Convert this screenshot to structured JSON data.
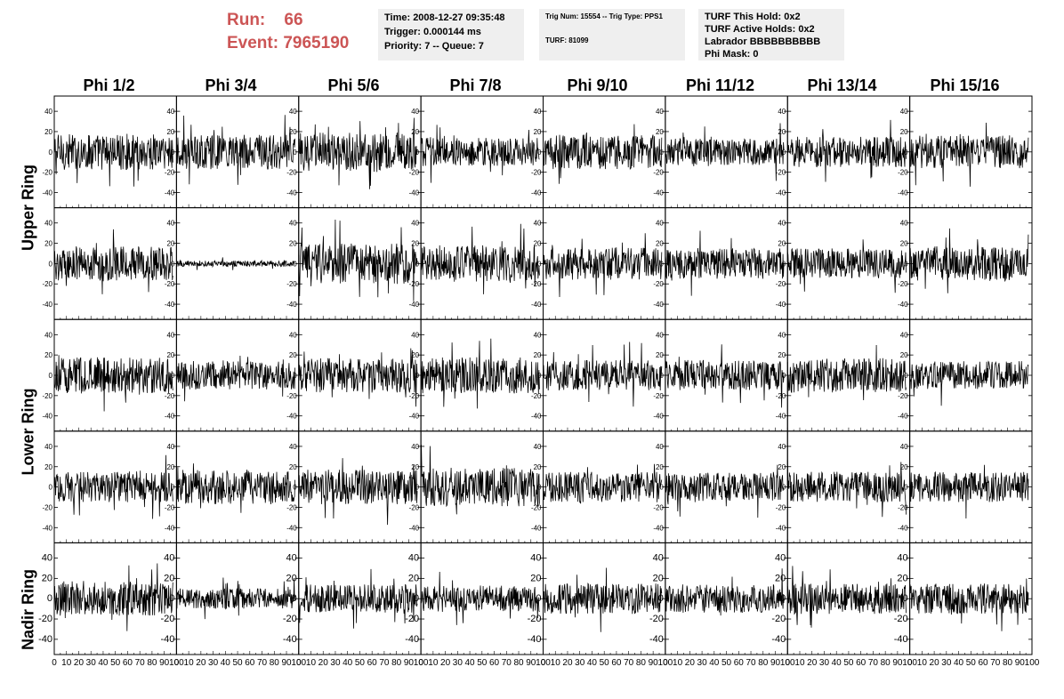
{
  "header": {
    "run_label": "Run:",
    "run_value": "66",
    "event_label": "Event:",
    "event_value": "7965190"
  },
  "info_box_1": {
    "time": "Time: 2008-12-27 09:35:48",
    "trigger": "Trigger: 0.000144 ms",
    "priority": "Priority: 7 -- Queue: 7"
  },
  "info_box_2": {
    "trig": "Trig Num: 15554 -- Trig Type: PPS1",
    "turf": "TURF: 81099"
  },
  "info_box_3": {
    "hold": "TURF This Hold: 0x2",
    "active": "TURF Active Holds: 0x2",
    "labrador": "Labrador BBBBBBBBBB",
    "phimask": "Phi Mask: 0"
  },
  "columns": [
    "Phi 1/2",
    "Phi 3/4",
    "Phi 5/6",
    "Phi 7/8",
    "Phi 9/10",
    "Phi 11/12",
    "Phi 13/14",
    "Phi 15/16"
  ],
  "rings": [
    "Upper Ring",
    "Lower Ring",
    "Nadir Ring"
  ],
  "colors": {
    "header_red": "#cc5555",
    "trace": "#000000",
    "info_bg": "#efefef"
  },
  "chart_data": {
    "type": "line",
    "description": "Grid of 5 rows x 8 columns of waveform traces (channel voltage vs sample)",
    "x_ticks": [
      0,
      10,
      20,
      30,
      40,
      50,
      60,
      70,
      80,
      90,
      100
    ],
    "x_tick_labels": [
      "0",
      "10",
      "20",
      "30",
      "40",
      "50",
      "60",
      "70",
      "80",
      "90",
      "100"
    ],
    "y_ticks": [
      -40,
      -20,
      0,
      20,
      40
    ],
    "y_tick_labels": [
      "-40",
      "-20",
      "0",
      "20",
      "40"
    ],
    "xlim": [
      0,
      100
    ],
    "ylim": [
      -55,
      55
    ],
    "panel_rows": 5,
    "panel_cols": 8,
    "n_samples": 260,
    "panels": [
      {
        "row": 0,
        "col": 0,
        "amp": 18
      },
      {
        "row": 0,
        "col": 1,
        "amp": 17
      },
      {
        "row": 0,
        "col": 2,
        "amp": 19
      },
      {
        "row": 0,
        "col": 3,
        "amp": 14
      },
      {
        "row": 0,
        "col": 4,
        "amp": 17
      },
      {
        "row": 0,
        "col": 5,
        "amp": 13
      },
      {
        "row": 0,
        "col": 6,
        "amp": 15
      },
      {
        "row": 0,
        "col": 7,
        "amp": 16
      },
      {
        "row": 1,
        "col": 0,
        "amp": 17
      },
      {
        "row": 1,
        "col": 1,
        "amp": 3
      },
      {
        "row": 1,
        "col": 2,
        "amp": 20
      },
      {
        "row": 1,
        "col": 3,
        "amp": 18
      },
      {
        "row": 1,
        "col": 4,
        "amp": 16
      },
      {
        "row": 1,
        "col": 5,
        "amp": 15
      },
      {
        "row": 1,
        "col": 6,
        "amp": 15
      },
      {
        "row": 1,
        "col": 7,
        "amp": 17
      },
      {
        "row": 2,
        "col": 0,
        "amp": 18
      },
      {
        "row": 2,
        "col": 1,
        "amp": 14
      },
      {
        "row": 2,
        "col": 2,
        "amp": 17
      },
      {
        "row": 2,
        "col": 3,
        "amp": 18
      },
      {
        "row": 2,
        "col": 4,
        "amp": 15
      },
      {
        "row": 2,
        "col": 5,
        "amp": 15
      },
      {
        "row": 2,
        "col": 6,
        "amp": 17
      },
      {
        "row": 2,
        "col": 7,
        "amp": 14
      },
      {
        "row": 3,
        "col": 0,
        "amp": 15
      },
      {
        "row": 3,
        "col": 1,
        "amp": 17
      },
      {
        "row": 3,
        "col": 2,
        "amp": 17
      },
      {
        "row": 3,
        "col": 3,
        "amp": 19
      },
      {
        "row": 3,
        "col": 4,
        "amp": 15
      },
      {
        "row": 3,
        "col": 5,
        "amp": 14
      },
      {
        "row": 3,
        "col": 6,
        "amp": 15
      },
      {
        "row": 3,
        "col": 7,
        "amp": 15
      },
      {
        "row": 4,
        "col": 0,
        "amp": 17
      },
      {
        "row": 4,
        "col": 1,
        "amp": 10
      },
      {
        "row": 4,
        "col": 2,
        "amp": 14
      },
      {
        "row": 4,
        "col": 3,
        "amp": 13
      },
      {
        "row": 4,
        "col": 4,
        "amp": 15
      },
      {
        "row": 4,
        "col": 5,
        "amp": 14
      },
      {
        "row": 4,
        "col": 6,
        "amp": 15
      },
      {
        "row": 4,
        "col": 7,
        "amp": 15
      }
    ]
  }
}
